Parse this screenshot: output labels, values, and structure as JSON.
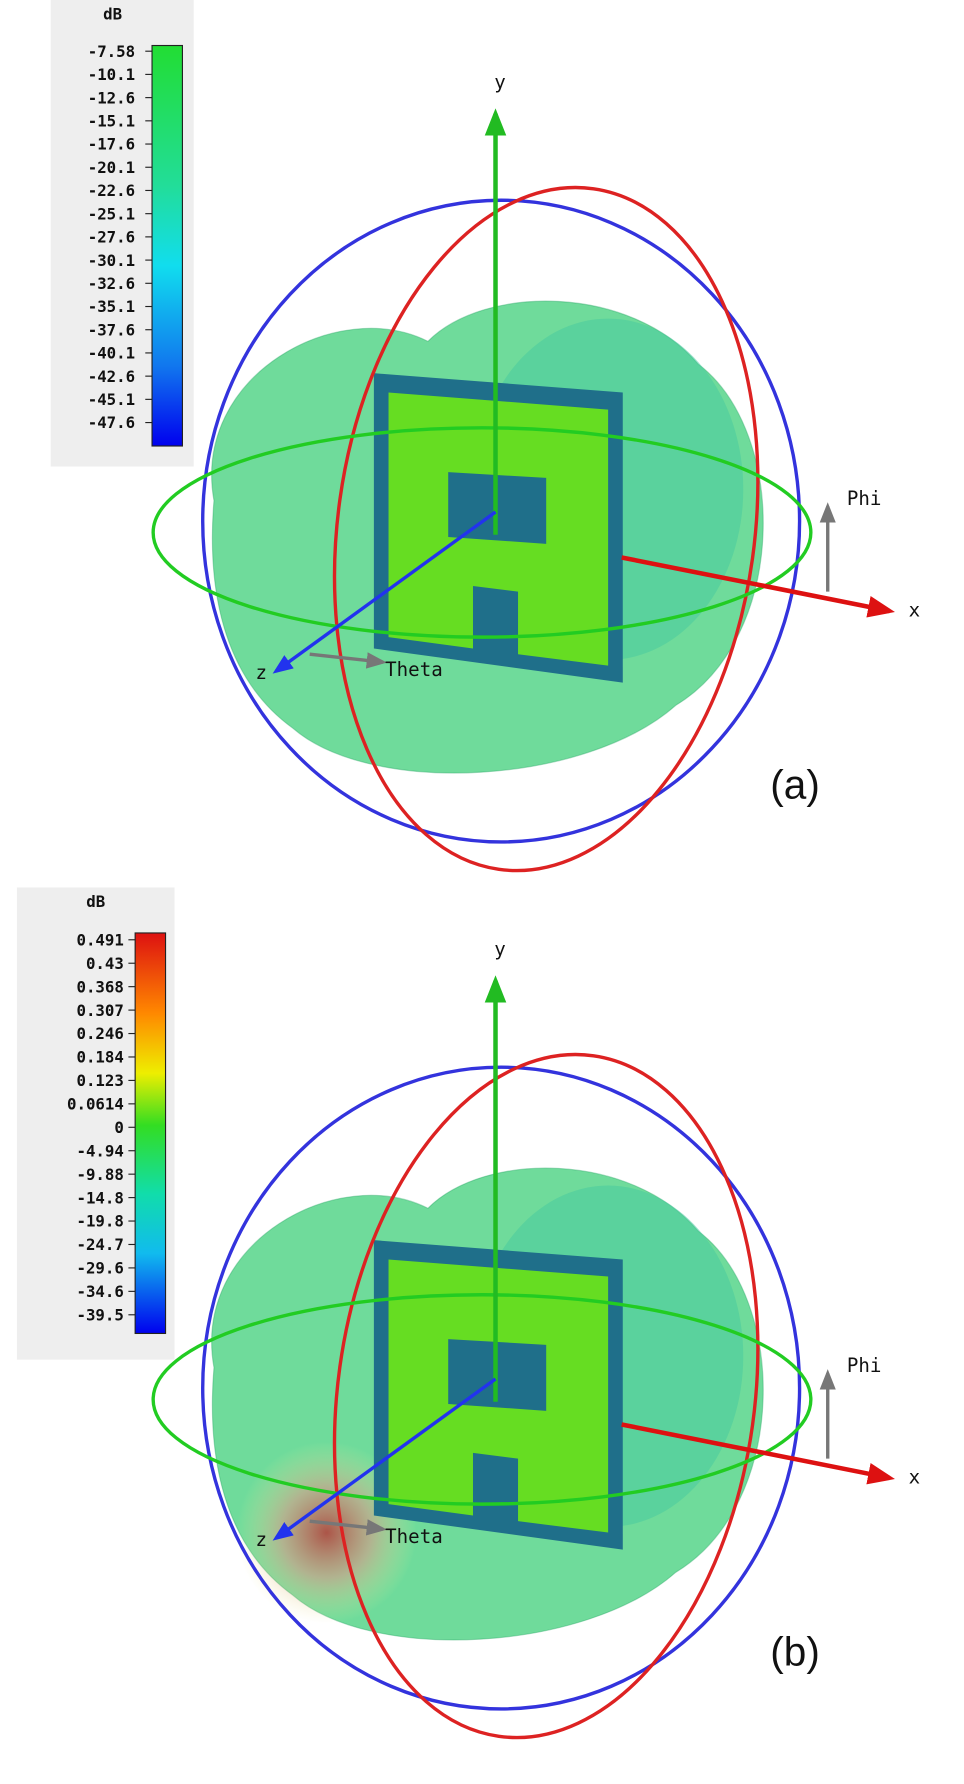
{
  "panels": [
    {
      "unit": "dB",
      "colorbar_labels": [
        "-7.58",
        "-10.1",
        "-12.6",
        "-15.1",
        "-17.6",
        "-20.1",
        "-22.6",
        "-25.1",
        "-27.6",
        "-30.1",
        "-32.6",
        "-35.1",
        "-37.6",
        "-40.1",
        "-42.6",
        "-45.1",
        "-47.6"
      ],
      "axes": {
        "y": "y",
        "x": "x",
        "z": "z"
      },
      "theta": "Theta",
      "phi": "Phi",
      "caption": "(a)"
    },
    {
      "unit": "dB",
      "colorbar_labels": [
        "0.491",
        "0.43",
        "0.368",
        "0.307",
        "0.246",
        "0.184",
        "0.123",
        "0.0614",
        "0",
        "-4.94",
        "-9.88",
        "-14.8",
        "-19.8",
        "-24.7",
        "-29.6",
        "-34.6",
        "-39.5"
      ],
      "axes": {
        "y": "y",
        "x": "x",
        "z": "z"
      },
      "theta": "Theta",
      "phi": "Phi",
      "caption": "(b)"
    }
  ]
}
